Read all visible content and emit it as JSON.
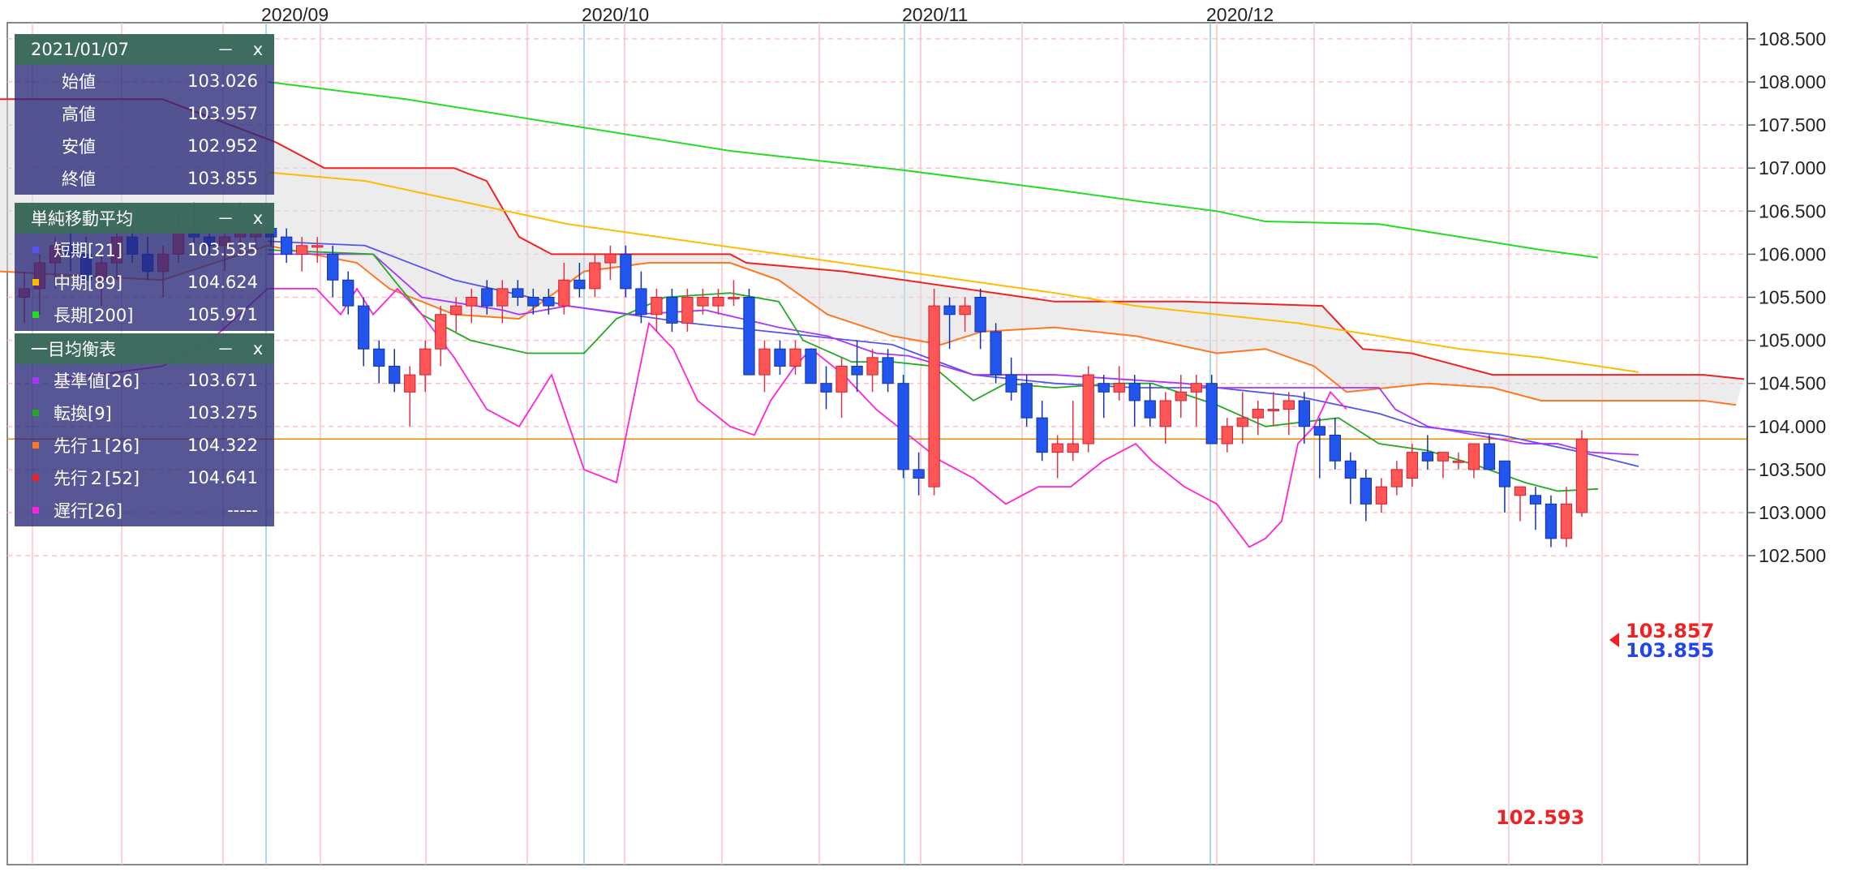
{
  "chart_data": {
    "type": "candlestick",
    "y_axis": {
      "min": 102.3,
      "max": 108.7,
      "ticks": [
        "108.500",
        "108.000",
        "107.500",
        "107.000",
        "106.500",
        "106.000",
        "105.500",
        "105.000",
        "104.500",
        "104.000",
        "103.500",
        "103.000",
        "102.500"
      ],
      "position": "right"
    },
    "x_axis": {
      "month_labels": [
        "2020/09",
        "2020/10",
        "2020/11",
        "2020/12"
      ]
    },
    "grid": true,
    "colors": {
      "up": "#ff5555",
      "down": "#2255ee",
      "sma_short": "#5555ee",
      "sma_mid": "#ffbb00",
      "sma_long": "#22dd22",
      "kijun": "#aa33ff",
      "tenkan": "#22aa22",
      "senkou1": "#ff7722",
      "senkou2": "#ee2222",
      "chikou": "#ff22dd",
      "cloud": "#dddddd",
      "current_line": "#ee8800"
    },
    "candles": [
      [
        105.5,
        105.8,
        105.2,
        105.6
      ],
      [
        105.6,
        106.0,
        105.3,
        105.9
      ],
      [
        105.9,
        106.2,
        105.6,
        106.1
      ],
      [
        106.1,
        106.4,
        105.8,
        106.0
      ],
      [
        106.0,
        106.2,
        105.6,
        105.7
      ],
      [
        105.7,
        106.0,
        105.4,
        105.9
      ],
      [
        105.9,
        106.3,
        105.7,
        106.2
      ],
      [
        106.2,
        106.4,
        105.9,
        106.0
      ],
      [
        106.0,
        106.2,
        105.7,
        105.8
      ],
      [
        105.8,
        106.1,
        105.5,
        106.0
      ],
      [
        106.0,
        106.5,
        105.9,
        106.3
      ],
      [
        106.3,
        106.6,
        106.1,
        106.2
      ],
      [
        106.2,
        106.3,
        106.0,
        106.1
      ],
      [
        106.1,
        106.4,
        105.8,
        106.2
      ],
      [
        106.2,
        106.6,
        106.0,
        106.3
      ],
      [
        106.2,
        106.4,
        106.0,
        106.3
      ],
      [
        106.3,
        106.5,
        106.1,
        106.2
      ],
      [
        106.2,
        106.3,
        105.9,
        106.0
      ],
      [
        106.0,
        106.2,
        105.8,
        106.1
      ],
      [
        106.1,
        106.2,
        105.9,
        106.1
      ],
      [
        106.0,
        106.1,
        105.5,
        105.7
      ],
      [
        105.7,
        105.8,
        105.3,
        105.4
      ],
      [
        105.4,
        105.5,
        104.7,
        104.9
      ],
      [
        104.9,
        105.0,
        104.5,
        104.7
      ],
      [
        104.7,
        104.9,
        104.4,
        104.5
      ],
      [
        104.4,
        104.7,
        104.0,
        104.6
      ],
      [
        104.6,
        105.0,
        104.4,
        104.9
      ],
      [
        104.9,
        105.4,
        104.7,
        105.3
      ],
      [
        105.3,
        105.5,
        105.1,
        105.4
      ],
      [
        105.4,
        105.6,
        105.2,
        105.5
      ],
      [
        105.6,
        105.7,
        105.3,
        105.4
      ],
      [
        105.4,
        105.7,
        105.2,
        105.6
      ],
      [
        105.6,
        105.7,
        105.4,
        105.5
      ],
      [
        105.5,
        105.6,
        105.3,
        105.4
      ],
      [
        105.5,
        105.6,
        105.3,
        105.4
      ],
      [
        105.4,
        105.9,
        105.3,
        105.7
      ],
      [
        105.7,
        105.9,
        105.5,
        105.6
      ],
      [
        105.6,
        106.0,
        105.5,
        105.9
      ],
      [
        105.9,
        106.1,
        105.7,
        106.0
      ],
      [
        106.0,
        106.1,
        105.5,
        105.6
      ],
      [
        105.6,
        105.8,
        105.2,
        105.3
      ],
      [
        105.3,
        105.6,
        105.1,
        105.5
      ],
      [
        105.5,
        105.6,
        105.1,
        105.2
      ],
      [
        105.2,
        105.6,
        105.1,
        105.5
      ],
      [
        105.4,
        105.6,
        105.3,
        105.5
      ],
      [
        105.4,
        105.6,
        105.3,
        105.5
      ],
      [
        105.5,
        105.7,
        105.4,
        105.5
      ],
      [
        105.5,
        105.6,
        104.6,
        104.6
      ],
      [
        104.6,
        105.0,
        104.4,
        104.9
      ],
      [
        104.9,
        105.0,
        104.6,
        104.7
      ],
      [
        104.7,
        105.0,
        104.6,
        104.9
      ],
      [
        104.9,
        104.9,
        104.5,
        104.5
      ],
      [
        104.5,
        104.7,
        104.2,
        104.4
      ],
      [
        104.4,
        104.8,
        104.1,
        104.7
      ],
      [
        104.7,
        105.0,
        104.4,
        104.6
      ],
      [
        104.6,
        104.9,
        104.4,
        104.8
      ],
      [
        104.8,
        104.9,
        104.4,
        104.5
      ],
      [
        104.5,
        104.6,
        103.4,
        103.5
      ],
      [
        103.5,
        103.7,
        103.2,
        103.4
      ],
      [
        103.3,
        105.6,
        103.2,
        105.4
      ],
      [
        105.4,
        105.5,
        104.9,
        105.3
      ],
      [
        105.3,
        105.5,
        105.1,
        105.4
      ],
      [
        105.5,
        105.6,
        104.9,
        105.1
      ],
      [
        105.1,
        105.2,
        104.5,
        104.6
      ],
      [
        104.6,
        104.8,
        104.3,
        104.4
      ],
      [
        104.5,
        104.6,
        104.0,
        104.1
      ],
      [
        104.1,
        104.3,
        103.6,
        103.7
      ],
      [
        103.7,
        103.9,
        103.4,
        103.8
      ],
      [
        103.7,
        104.3,
        103.6,
        103.8
      ],
      [
        103.8,
        104.7,
        103.7,
        104.6
      ],
      [
        104.5,
        104.6,
        104.1,
        104.4
      ],
      [
        104.4,
        104.7,
        104.3,
        104.5
      ],
      [
        104.5,
        104.6,
        104.0,
        104.3
      ],
      [
        104.3,
        104.5,
        104.0,
        104.1
      ],
      [
        104.0,
        104.4,
        103.8,
        104.3
      ],
      [
        104.3,
        104.6,
        104.1,
        104.4
      ],
      [
        104.4,
        104.6,
        104.0,
        104.5
      ],
      [
        104.5,
        104.6,
        103.8,
        103.8
      ],
      [
        103.8,
        104.1,
        103.7,
        104.0
      ],
      [
        104.0,
        104.4,
        103.8,
        104.1
      ],
      [
        104.1,
        104.3,
        103.9,
        104.2
      ],
      [
        104.2,
        104.4,
        104.0,
        104.2
      ],
      [
        104.2,
        104.4,
        103.9,
        104.3
      ],
      [
        104.3,
        104.4,
        103.8,
        104.0
      ],
      [
        104.0,
        104.1,
        103.4,
        103.9
      ],
      [
        103.9,
        104.1,
        103.5,
        103.6
      ],
      [
        103.6,
        103.7,
        103.1,
        103.4
      ],
      [
        103.4,
        103.5,
        102.9,
        103.1
      ],
      [
        103.1,
        103.4,
        103.0,
        103.3
      ],
      [
        103.3,
        103.6,
        103.2,
        103.5
      ],
      [
        103.4,
        103.8,
        103.3,
        103.7
      ],
      [
        103.7,
        103.9,
        103.5,
        103.6
      ],
      [
        103.6,
        103.7,
        103.4,
        103.7
      ],
      [
        103.6,
        103.7,
        103.5,
        103.6
      ],
      [
        103.5,
        103.8,
        103.4,
        103.8
      ],
      [
        103.8,
        103.9,
        103.5,
        103.5
      ],
      [
        103.6,
        103.6,
        103.0,
        103.3
      ],
      [
        103.2,
        103.3,
        102.9,
        103.3
      ],
      [
        103.2,
        103.3,
        102.8,
        103.1
      ],
      [
        103.1,
        103.2,
        102.6,
        102.7
      ],
      [
        102.7,
        103.3,
        102.6,
        103.1
      ],
      [
        103.0,
        103.957,
        102.952,
        103.855
      ]
    ],
    "sma_long": [
      [
        330,
        108.0
      ],
      [
        500,
        107.8
      ],
      [
        700,
        107.5
      ],
      [
        900,
        107.2
      ],
      [
        1110,
        106.98
      ],
      [
        1300,
        106.75
      ],
      [
        1400,
        106.62
      ],
      [
        1500,
        106.5
      ],
      [
        1560,
        106.38
      ],
      [
        1700,
        106.35
      ],
      [
        1800,
        106.2
      ],
      [
        1900,
        106.05
      ],
      [
        1970,
        105.96
      ]
    ],
    "sma_mid": [
      [
        330,
        106.95
      ],
      [
        450,
        106.85
      ],
      [
        550,
        106.65
      ],
      [
        700,
        106.35
      ],
      [
        850,
        106.15
      ],
      [
        1000,
        105.95
      ],
      [
        1150,
        105.75
      ],
      [
        1300,
        105.55
      ],
      [
        1400,
        105.4
      ],
      [
        1500,
        105.3
      ],
      [
        1600,
        105.2
      ],
      [
        1700,
        105.05
      ],
      [
        1800,
        104.9
      ],
      [
        1900,
        104.8
      ],
      [
        2020,
        104.63
      ]
    ],
    "sma_short": [
      [
        330,
        106.15
      ],
      [
        450,
        106.1
      ],
      [
        560,
        105.7
      ],
      [
        700,
        105.4
      ],
      [
        850,
        105.2
      ],
      [
        1000,
        105.05
      ],
      [
        1100,
        104.95
      ],
      [
        1200,
        104.6
      ],
      [
        1300,
        104.5
      ],
      [
        1400,
        104.45
      ],
      [
        1500,
        104.45
      ],
      [
        1600,
        104.35
      ],
      [
        1700,
        104.15
      ],
      [
        1750,
        104.0
      ],
      [
        1850,
        103.9
      ],
      [
        1950,
        103.7
      ],
      [
        2020,
        103.535
      ]
    ],
    "kijun": [
      [
        330,
        106.0
      ],
      [
        460,
        106.0
      ],
      [
        520,
        105.5
      ],
      [
        620,
        105.35
      ],
      [
        640,
        105.3
      ],
      [
        700,
        105.4
      ],
      [
        780,
        105.3
      ],
      [
        870,
        105.35
      ],
      [
        960,
        105.15
      ],
      [
        1020,
        105.05
      ],
      [
        1080,
        104.85
      ],
      [
        1120,
        104.82
      ],
      [
        1200,
        104.6
      ],
      [
        1300,
        104.6
      ],
      [
        1460,
        104.5
      ],
      [
        1500,
        104.45
      ],
      [
        1700,
        104.45
      ],
      [
        1720,
        104.2
      ],
      [
        1760,
        104.0
      ],
      [
        1880,
        103.8
      ],
      [
        1920,
        103.8
      ],
      [
        1960,
        103.7
      ],
      [
        2020,
        103.671
      ]
    ],
    "tenkan": [
      [
        330,
        106.05
      ],
      [
        460,
        106.0
      ],
      [
        520,
        105.3
      ],
      [
        580,
        105.0
      ],
      [
        650,
        104.85
      ],
      [
        720,
        104.85
      ],
      [
        760,
        105.25
      ],
      [
        820,
        105.5
      ],
      [
        900,
        105.55
      ],
      [
        960,
        105.45
      ],
      [
        990,
        105.0
      ],
      [
        1050,
        104.75
      ],
      [
        1100,
        104.75
      ],
      [
        1150,
        104.7
      ],
      [
        1200,
        104.3
      ],
      [
        1240,
        104.5
      ],
      [
        1300,
        104.45
      ],
      [
        1380,
        104.5
      ],
      [
        1420,
        104.5
      ],
      [
        1500,
        104.25
      ],
      [
        1560,
        104.0
      ],
      [
        1650,
        104.1
      ],
      [
        1700,
        103.8
      ],
      [
        1760,
        103.72
      ],
      [
        1820,
        103.55
      ],
      [
        1880,
        103.35
      ],
      [
        1920,
        103.25
      ],
      [
        1970,
        103.275
      ]
    ],
    "senkou1": [
      [
        0,
        105.8
      ],
      [
        200,
        105.7
      ],
      [
        330,
        106.1
      ],
      [
        440,
        105.9
      ],
      [
        480,
        105.6
      ],
      [
        560,
        105.3
      ],
      [
        640,
        105.25
      ],
      [
        720,
        105.8
      ],
      [
        800,
        105.9
      ],
      [
        900,
        105.9
      ],
      [
        960,
        105.7
      ],
      [
        1020,
        105.3
      ],
      [
        1100,
        105.05
      ],
      [
        1160,
        104.95
      ],
      [
        1210,
        105.1
      ],
      [
        1300,
        105.15
      ],
      [
        1400,
        105.05
      ],
      [
        1500,
        104.85
      ],
      [
        1560,
        104.9
      ],
      [
        1620,
        104.7
      ],
      [
        1660,
        104.4
      ],
      [
        1760,
        104.5
      ],
      [
        1840,
        104.45
      ],
      [
        1900,
        104.3
      ],
      [
        2100,
        104.3
      ],
      [
        2140,
        104.25
      ]
    ],
    "senkou2": [
      [
        0,
        107.8
      ],
      [
        200,
        107.8
      ],
      [
        340,
        107.3
      ],
      [
        400,
        107.0
      ],
      [
        560,
        107.0
      ],
      [
        600,
        106.85
      ],
      [
        640,
        106.2
      ],
      [
        680,
        106.0
      ],
      [
        900,
        106.0
      ],
      [
        920,
        105.9
      ],
      [
        1040,
        105.8
      ],
      [
        1300,
        105.45
      ],
      [
        1460,
        105.45
      ],
      [
        1630,
        105.4
      ],
      [
        1680,
        104.9
      ],
      [
        1740,
        104.85
      ],
      [
        1840,
        104.6
      ],
      [
        2100,
        104.6
      ],
      [
        2150,
        104.55
      ]
    ],
    "chikou": [
      [
        70,
        104.55
      ],
      [
        120,
        104.6
      ],
      [
        200,
        104.7
      ],
      [
        260,
        105.0
      ],
      [
        330,
        105.6
      ],
      [
        390,
        105.6
      ],
      [
        420,
        105.3
      ],
      [
        440,
        105.6
      ],
      [
        460,
        105.3
      ],
      [
        490,
        105.6
      ],
      [
        520,
        105.3
      ],
      [
        560,
        104.8
      ],
      [
        600,
        104.2
      ],
      [
        640,
        104.0
      ],
      [
        680,
        104.6
      ],
      [
        720,
        103.5
      ],
      [
        760,
        103.35
      ],
      [
        800,
        105.2
      ],
      [
        830,
        104.9
      ],
      [
        860,
        104.3
      ],
      [
        900,
        104.0
      ],
      [
        930,
        103.9
      ],
      [
        950,
        104.3
      ],
      [
        980,
        104.7
      ],
      [
        1000,
        104.9
      ],
      [
        1040,
        104.6
      ],
      [
        1080,
        104.2
      ],
      [
        1120,
        103.9
      ],
      [
        1160,
        103.6
      ],
      [
        1200,
        103.4
      ],
      [
        1240,
        103.1
      ],
      [
        1280,
        103.3
      ],
      [
        1320,
        103.3
      ],
      [
        1360,
        103.6
      ],
      [
        1400,
        103.8
      ],
      [
        1420,
        103.6
      ],
      [
        1460,
        103.3
      ],
      [
        1500,
        103.1
      ],
      [
        1540,
        102.6
      ],
      [
        1560,
        102.7
      ],
      [
        1580,
        102.9
      ],
      [
        1600,
        103.8
      ],
      [
        1620,
        104.0
      ],
      [
        1640,
        104.4
      ],
      [
        1660,
        104.2
      ]
    ],
    "current_price": 103.855,
    "price_labels": {
      "bid": "103.857",
      "ask": "103.855",
      "low": "102.593"
    }
  },
  "panel": {
    "date": "2021/01/07",
    "minimize": "－",
    "close": "x",
    "ohlc": [
      {
        "label": "始値",
        "value": "103.026"
      },
      {
        "label": "高値",
        "value": "103.957"
      },
      {
        "label": "安値",
        "value": "102.952"
      },
      {
        "label": "終値",
        "value": "103.855"
      }
    ],
    "sma_title": "単純移動平均",
    "sma": [
      {
        "label": "短期[21]",
        "value": "103.535",
        "color": "#5555ee"
      },
      {
        "label": "中期[89]",
        "value": "104.624",
        "color": "#ffbb00"
      },
      {
        "label": "長期[200]",
        "value": "105.971",
        "color": "#22dd22"
      }
    ],
    "ichimoku_title": "一目均衡表",
    "ichimoku": [
      {
        "label": "基準値[26]",
        "value": "103.671",
        "color": "#aa33ff"
      },
      {
        "label": "転換[9]",
        "value": "103.275",
        "color": "#22aa22"
      },
      {
        "label": "先行１[26]",
        "value": "104.322",
        "color": "#ff7722"
      },
      {
        "label": "先行２[52]",
        "value": "104.641",
        "color": "#ee2222"
      },
      {
        "label": "遅行[26]",
        "value": "-----",
        "color": "#ff22dd"
      }
    ]
  }
}
